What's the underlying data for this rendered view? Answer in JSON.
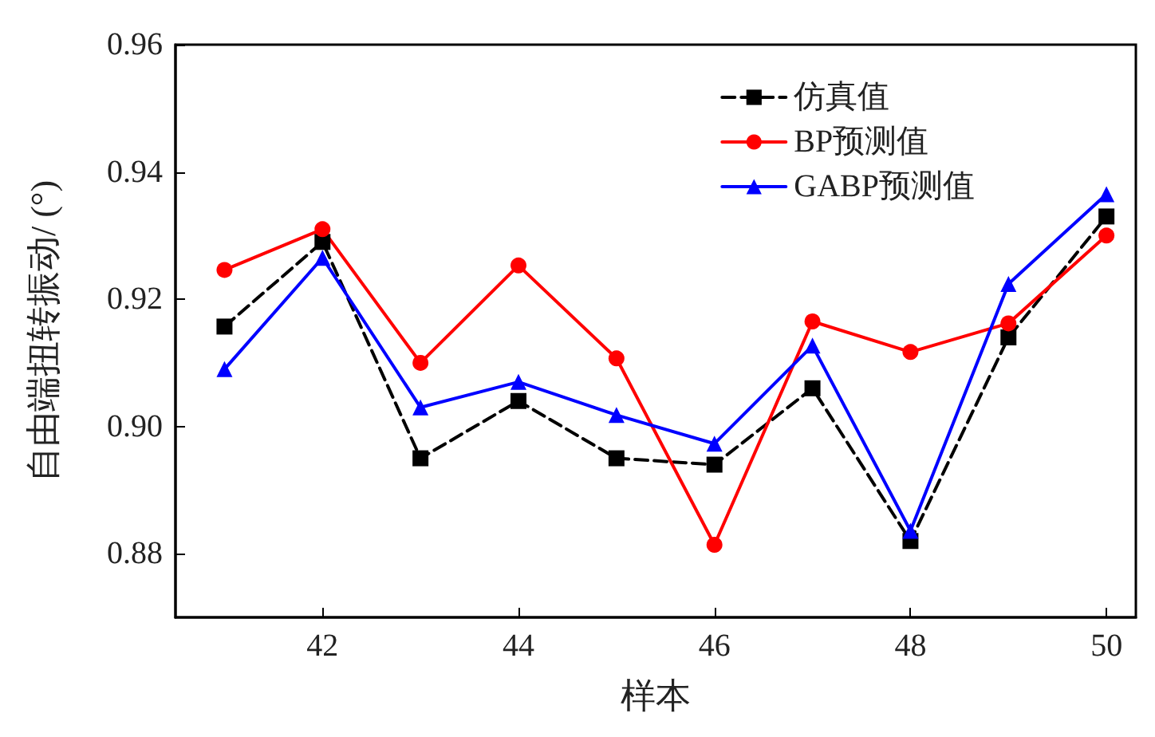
{
  "chart_data": {
    "type": "line",
    "xlabel": "样本",
    "ylabel": "自由端扭转振动/ (°)",
    "x": [
      41,
      42,
      43,
      44,
      45,
      46,
      47,
      48,
      49,
      50
    ],
    "series": [
      {
        "name": "仿真值",
        "color": "#000000",
        "line_style": "dashed",
        "marker": "square",
        "values": [
          0.9157,
          0.929,
          0.895,
          0.904,
          0.895,
          0.894,
          0.906,
          0.882,
          0.914,
          0.933
        ]
      },
      {
        "name": "BP预测值",
        "color": "#ff0000",
        "line_style": "solid",
        "marker": "circle",
        "values": [
          0.9246,
          0.931,
          0.91,
          0.9253,
          0.9107,
          0.8814,
          0.9165,
          0.9117,
          0.9162,
          0.93
        ]
      },
      {
        "name": "GABP预测值",
        "color": "#0000ff",
        "line_style": "solid",
        "marker": "triangle",
        "values": [
          0.909,
          0.9265,
          0.903,
          0.907,
          0.9018,
          0.8973,
          0.9127,
          0.8836,
          0.9224,
          0.9365
        ]
      }
    ],
    "xlim": [
      40.5,
      50.3
    ],
    "xticks": [
      42,
      44,
      46,
      48,
      50
    ],
    "ylim": [
      0.87,
      0.96
    ],
    "yticks": [
      0.88,
      {
        "value": 0.9,
        "label": "0.90"
      },
      0.92,
      0.94,
      0.96
    ],
    "grid": false,
    "legend": "top right"
  }
}
